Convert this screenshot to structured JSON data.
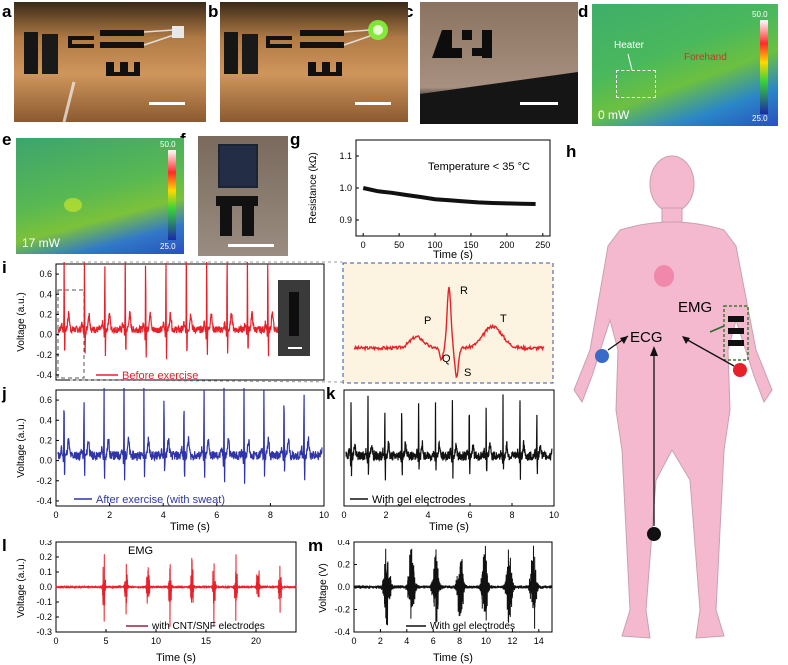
{
  "panel_labels": [
    "a",
    "b",
    "c",
    "d",
    "e",
    "f",
    "g",
    "h",
    "i",
    "j",
    "k",
    "l",
    "m"
  ],
  "thermal_d": {
    "label_heater": "Heater",
    "label_forehand": "Forehand",
    "power": "0 mW",
    "scale_max": "50.0",
    "scale_min": "25.0"
  },
  "thermal_e": {
    "power": "17 mW",
    "scale_max": "50.0",
    "scale_min": "25.0"
  },
  "panel_g": {
    "annotation": "Temperature < 35 °C",
    "xlabel": "Time (s)",
    "ylabel": "Resistance (kΩ)",
    "xticks": [
      "0",
      "50",
      "100",
      "150",
      "200",
      "250"
    ],
    "yticks": [
      "1.1",
      "1.0",
      "0.9"
    ]
  },
  "panel_i": {
    "legend": "Before exercise",
    "ylabel": "Voltage (a.u.)",
    "yticks": [
      "0.6",
      "0.4",
      "0.2",
      "0.0",
      "-0.2",
      "-0.4"
    ],
    "zoom_labels": {
      "P": "P",
      "Q": "Q",
      "R": "R",
      "S": "S",
      "T": "T"
    }
  },
  "panel_j": {
    "legend": "After exercise (with sweat)",
    "ylabel": "Voltage (a.u.)",
    "xlabel": "Time (s)",
    "yticks": [
      "0.6",
      "0.4",
      "0.2",
      "0.0",
      "-0.2",
      "-0.4"
    ],
    "xticks": [
      "0",
      "2",
      "4",
      "6",
      "8",
      "10"
    ]
  },
  "panel_k": {
    "legend": "With gel electrodes",
    "xlabel": "Time (s)",
    "xticks": [
      "0",
      "2",
      "4",
      "6",
      "8",
      "10"
    ]
  },
  "panel_l": {
    "title": "EMG",
    "legend": "with CNT/SNF electrodes",
    "ylabel": "Voltage (a.u.)",
    "xlabel": "Time (s)",
    "yticks": [
      "0.3",
      "0.2",
      "0.1",
      "0.0",
      "-0.1",
      "-0.2",
      "-0.3"
    ],
    "xticks": [
      "0",
      "5",
      "10",
      "15",
      "20"
    ]
  },
  "panel_m": {
    "legend": "With gel electrodes",
    "ylabel": "Voltage (V)",
    "xlabel": "Time (s)",
    "yticks": [
      "0.4",
      "0.2",
      "0.0",
      "-0.2",
      "-0.4"
    ],
    "xticks": [
      "0",
      "2",
      "4",
      "6",
      "8",
      "10",
      "12",
      "14"
    ]
  },
  "panel_h": {
    "label_ecg": "ECG",
    "label_emg": "EMG"
  },
  "colors": {
    "ecg_before": "#e8202a",
    "ecg_after": "#2f35a8",
    "gel": "#111111",
    "emg": "#e8202a",
    "body": "#f4b9cf",
    "zoom_bg": "#fcf4e0"
  },
  "chart_data": [
    {
      "panel": "g",
      "type": "line",
      "xlabel": "Time (s)",
      "ylabel": "Resistance (kΩ)",
      "xlim": [
        -10,
        260
      ],
      "ylim": [
        0.85,
        1.15
      ],
      "x": [
        0,
        20,
        40,
        60,
        80,
        100,
        120,
        140,
        160,
        180,
        200,
        220,
        240
      ],
      "y": [
        1.0,
        0.99,
        0.985,
        0.978,
        0.972,
        0.965,
        0.962,
        0.958,
        0.955,
        0.953,
        0.952,
        0.951,
        0.95
      ]
    },
    {
      "panel": "i",
      "type": "line",
      "series": [
        {
          "name": "Before exercise"
        }
      ],
      "ylim": [
        -0.45,
        0.7
      ],
      "xlim": [
        0,
        10
      ]
    },
    {
      "panel": "j",
      "type": "line",
      "series": [
        {
          "name": "After exercise (with sweat)"
        }
      ],
      "xlabel": "Time (s)",
      "ylim": [
        -0.45,
        0.7
      ],
      "xlim": [
        0,
        10
      ]
    },
    {
      "panel": "k",
      "type": "line",
      "series": [
        {
          "name": "With gel electrodes"
        }
      ],
      "xlabel": "Time (s)",
      "xlim": [
        0,
        10
      ]
    },
    {
      "panel": "l",
      "type": "line",
      "series": [
        {
          "name": "with CNT/SNF electrodes"
        }
      ],
      "xlabel": "Time (s)",
      "ylim": [
        -0.3,
        0.3
      ],
      "xlim": [
        0,
        24
      ]
    },
    {
      "panel": "m",
      "type": "line",
      "series": [
        {
          "name": "With gel electrodes"
        }
      ],
      "xlabel": "Time (s)",
      "ylim": [
        -0.4,
        0.4
      ],
      "xlim": [
        0,
        15
      ]
    }
  ]
}
